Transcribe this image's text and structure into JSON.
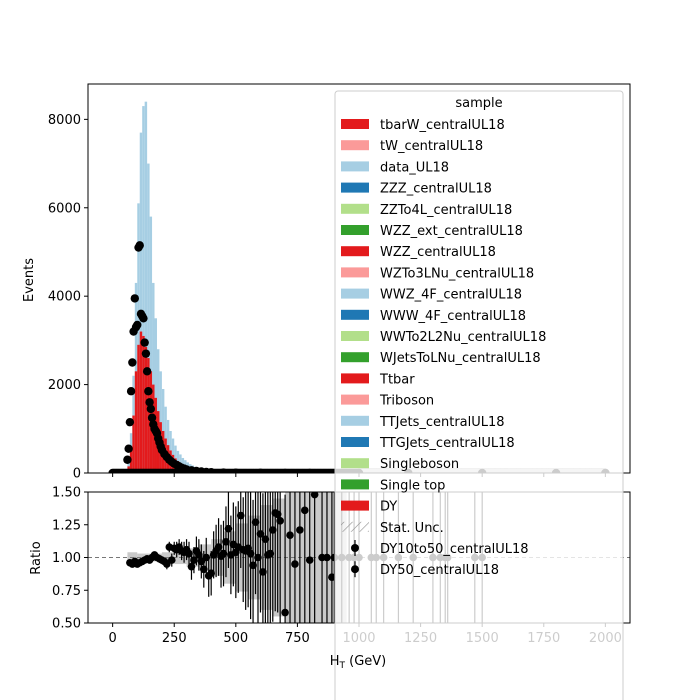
{
  "chart_data": [
    {
      "type": "bar",
      "panel": "main",
      "stacked": true,
      "ylabel": "Events",
      "xlim": [
        -100,
        2100
      ],
      "ylim": [
        0,
        8800
      ],
      "yticks": [
        0,
        2000,
        4000,
        6000,
        8000
      ],
      "grid": false,
      "legend_placement": "top-right",
      "legend": {
        "title": "sample",
        "entries": [
          {
            "label": "tbarW_centralUL18",
            "color": "#e31a1c",
            "kind": "patch"
          },
          {
            "label": "tW_centralUL18",
            "color": "#fb9a99",
            "kind": "patch"
          },
          {
            "label": "data_UL18",
            "color": "#a6cee3",
            "kind": "patch"
          },
          {
            "label": "ZZZ_centralUL18",
            "color": "#1f78b4",
            "kind": "patch"
          },
          {
            "label": "ZZTo4L_centralUL18",
            "color": "#b2df8a",
            "kind": "patch"
          },
          {
            "label": "WZZ_ext_centralUL18",
            "color": "#33a02c",
            "kind": "patch"
          },
          {
            "label": "WZZ_centralUL18",
            "color": "#e31a1c",
            "kind": "patch"
          },
          {
            "label": "WZTo3LNu_centralUL18",
            "color": "#fb9a99",
            "kind": "patch"
          },
          {
            "label": "WWZ_4F_centralUL18",
            "color": "#a6cee3",
            "kind": "patch"
          },
          {
            "label": "WWW_4F_centralUL18",
            "color": "#1f78b4",
            "kind": "patch"
          },
          {
            "label": "WWTo2L2Nu_centralUL18",
            "color": "#b2df8a",
            "kind": "patch"
          },
          {
            "label": "WJetsToLNu_centralUL18",
            "color": "#33a02c",
            "kind": "patch"
          },
          {
            "label": "Ttbar",
            "color": "#e31a1c",
            "kind": "patch"
          },
          {
            "label": "Triboson",
            "color": "#fb9a99",
            "kind": "patch"
          },
          {
            "label": "TTJets_centralUL18",
            "color": "#a6cee3",
            "kind": "patch"
          },
          {
            "label": "TTGJets_centralUL18",
            "color": "#1f78b4",
            "kind": "patch"
          },
          {
            "label": "Singleboson",
            "color": "#b2df8a",
            "kind": "patch"
          },
          {
            "label": "Single top",
            "color": "#33a02c",
            "kind": "patch"
          },
          {
            "label": "DY",
            "color": "#e31a1c",
            "kind": "patch"
          },
          {
            "label": "Stat. Unc.",
            "color": "#888888",
            "kind": "hatch"
          },
          {
            "label": "DY10to50_centralUL18",
            "color": "#000000",
            "kind": "marker"
          },
          {
            "label": "DY50_centralUL18",
            "color": "#000000",
            "kind": "marker"
          }
        ]
      },
      "stack_light_blue": {
        "name": "data_UL18",
        "color": "#a6cee3",
        "bin_width": 10,
        "x": [
          60,
          70,
          80,
          90,
          100,
          110,
          120,
          130,
          140,
          150,
          160,
          170,
          180,
          190,
          200,
          210,
          220,
          230,
          240,
          250,
          260,
          270,
          280,
          290,
          300,
          310,
          320,
          330,
          340,
          350,
          360,
          370,
          380,
          390,
          400,
          420,
          440,
          460,
          480,
          500,
          550,
          600,
          700,
          800
        ],
        "values": [
          300,
          900,
          2200,
          4300,
          6100,
          7700,
          8300,
          8400,
          7000,
          5800,
          4300,
          3500,
          2800,
          2300,
          1900,
          1500,
          1200,
          950,
          780,
          620,
          500,
          420,
          340,
          290,
          240,
          200,
          170,
          140,
          120,
          100,
          85,
          70,
          60,
          50,
          40,
          30,
          24,
          18,
          13,
          10,
          6,
          4,
          2,
          1
        ]
      },
      "stack_red": {
        "name": "DY",
        "color": "#e31a1c",
        "bin_width": 10,
        "x": [
          60,
          70,
          80,
          90,
          100,
          110,
          120,
          130,
          140,
          150,
          160,
          170,
          180,
          190,
          200,
          210,
          220,
          230,
          240,
          250,
          260,
          270,
          280,
          290,
          300,
          320,
          340,
          360,
          380,
          400
        ],
        "values": [
          150,
          500,
          1300,
          2300,
          2900,
          3200,
          3100,
          2850,
          2600,
          2300,
          2000,
          1700,
          1400,
          1150,
          950,
          780,
          630,
          510,
          410,
          330,
          270,
          220,
          180,
          145,
          120,
          80,
          55,
          40,
          28,
          20
        ]
      },
      "points": {
        "x": [
          60,
          65,
          70,
          75,
          80,
          85,
          90,
          95,
          100,
          105,
          110,
          115,
          120,
          125,
          130,
          135,
          140,
          145,
          150,
          155,
          160,
          165,
          170,
          175,
          180,
          185,
          190,
          195,
          200,
          210,
          220,
          230,
          240,
          250,
          260,
          270,
          280,
          290,
          300,
          320,
          340,
          360,
          380,
          400,
          450,
          500,
          600,
          700,
          800,
          1000,
          1200,
          1500,
          1800,
          2000
        ],
        "y": [
          300,
          550,
          1150,
          1850,
          2500,
          3200,
          3950,
          3300,
          3350,
          5100,
          5150,
          3600,
          3550,
          3500,
          2950,
          2700,
          2300,
          1850,
          1600,
          1450,
          1250,
          1100,
          1000,
          950,
          900,
          780,
          690,
          600,
          520,
          430,
          360,
          300,
          250,
          210,
          180,
          150,
          120,
          100,
          80,
          60,
          45,
          35,
          25,
          18,
          10,
          6,
          3,
          2,
          1,
          1,
          0,
          0,
          0,
          0
        ]
      }
    },
    {
      "type": "scatter",
      "panel": "ratio",
      "xlabel": "H_T (GeV)",
      "ylabel": "Ratio",
      "xlim": [
        -100,
        2100
      ],
      "ylim": [
        0.5,
        1.5
      ],
      "xticks": [
        0,
        250,
        500,
        750,
        1000,
        1250,
        1500,
        1750,
        2000
      ],
      "yticks": [
        0.5,
        0.75,
        1.0,
        1.25,
        1.5
      ],
      "reference_line": 1.0,
      "points": {
        "x": [
          70,
          80,
          90,
          100,
          110,
          120,
          130,
          140,
          150,
          160,
          170,
          180,
          190,
          200,
          210,
          220,
          230,
          240,
          250,
          260,
          270,
          280,
          290,
          300,
          310,
          320,
          330,
          340,
          350,
          360,
          370,
          380,
          390,
          400,
          410,
          420,
          430,
          440,
          450,
          460,
          470,
          480,
          490,
          500,
          510,
          520,
          530,
          540,
          550,
          560,
          570,
          580,
          590,
          600,
          610,
          620,
          630,
          640,
          650,
          660,
          670,
          680,
          700,
          720,
          740,
          760,
          780,
          800,
          820,
          850,
          870,
          890,
          900,
          930,
          960,
          980,
          1000,
          1050,
          1070,
          1100,
          1160,
          1220,
          1300,
          1330,
          1350,
          1360,
          1470,
          1500
        ],
        "y": [
          0.96,
          0.95,
          0.97,
          0.95,
          0.96,
          0.97,
          0.98,
          0.99,
          0.98,
          1.0,
          1.02,
          1.0,
          0.99,
          0.98,
          0.97,
          0.95,
          1.08,
          0.98,
          1.07,
          1.06,
          1.08,
          1.05,
          1.04,
          1.06,
          1.03,
          0.93,
          0.98,
          1.05,
          1.02,
          0.97,
          0.91,
          1.0,
          0.86,
          0.88,
          1.02,
          1.05,
          1.08,
          1.01,
          1.03,
          1.12,
          1.22,
          1.02,
          1.1,
          1.04,
          1.08,
          1.32,
          1.06,
          1.05,
          1.07,
          1.03,
          0.94,
          1.27,
          1.0,
          1.18,
          0.89,
          1.14,
          1.02,
          1.03,
          1.21,
          1.34,
          1.33,
          1.28,
          0.58,
          1.17,
          0.95,
          1.21,
          1.36,
          0.98,
          1.48,
          1.0,
          1.0,
          0.85,
          1.0,
          1.0,
          1.0,
          1.0,
          1.0,
          1.0,
          1.0,
          1.0,
          1.0,
          1.0,
          1.0,
          1.0,
          1.0,
          1.0,
          1.0,
          1.0
        ],
        "err": [
          0.02,
          0.02,
          0.02,
          0.02,
          0.02,
          0.02,
          0.02,
          0.02,
          0.02,
          0.02,
          0.02,
          0.02,
          0.03,
          0.03,
          0.03,
          0.04,
          0.04,
          0.05,
          0.05,
          0.06,
          0.06,
          0.07,
          0.08,
          0.08,
          0.09,
          0.1,
          0.1,
          0.11,
          0.12,
          0.13,
          0.14,
          0.15,
          0.16,
          0.17,
          0.18,
          0.2,
          0.22,
          0.24,
          0.25,
          0.27,
          0.3,
          0.3,
          0.32,
          0.35,
          0.35,
          0.4,
          0.4,
          0.45,
          0.45,
          0.5,
          0.5,
          0.55,
          0.55,
          0.6,
          0.6,
          0.65,
          0.65,
          0.7,
          0.7,
          0.75,
          0.75,
          0.8,
          0.9,
          0.9,
          0.9,
          0.9,
          0.9,
          1.0,
          1.0,
          1.0,
          1.0,
          1.0,
          1.0,
          1.0,
          1.0,
          1.0,
          1.0,
          1.0,
          1.0,
          1.0,
          1.0,
          1.0,
          1.0,
          1.0,
          1.0,
          1.0,
          1.0,
          1.0
        ]
      },
      "stat_unc": {
        "x": [
          60,
          100,
          150,
          200,
          250,
          300,
          350,
          400,
          450,
          500,
          550,
          600,
          650,
          700,
          750,
          800,
          850,
          900
        ],
        "halfwidth": [
          0.04,
          0.03,
          0.03,
          0.04,
          0.05,
          0.07,
          0.1,
          0.14,
          0.2,
          0.26,
          0.32,
          0.4,
          0.45,
          0.5,
          0.5,
          0.5,
          0.5,
          0.5
        ]
      }
    }
  ]
}
